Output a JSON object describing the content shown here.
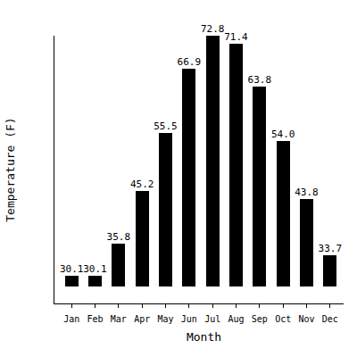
{
  "chart_data": {
    "type": "bar",
    "x_label": "Month",
    "y_label": "Temperature (F)",
    "categories": [
      "Jan",
      "Feb",
      "Mar",
      "Apr",
      "May",
      "Jun",
      "Jul",
      "Aug",
      "Sep",
      "Oct",
      "Nov",
      "Dec"
    ],
    "values": [
      30.1,
      30.1,
      35.8,
      45.2,
      55.5,
      66.9,
      72.8,
      71.4,
      63.8,
      54.0,
      43.8,
      33.7
    ],
    "value_labels": [
      "30.1",
      "30.1",
      "35.8",
      "45.2",
      "55.5",
      "66.9",
      "72.8",
      "71.4",
      "63.8",
      "54.0",
      "43.8",
      "33.7"
    ],
    "color": "#000000",
    "ylim": [
      28.2,
      72.8
    ],
    "data_labels": true,
    "tick_labels": "x",
    "grid": false
  }
}
